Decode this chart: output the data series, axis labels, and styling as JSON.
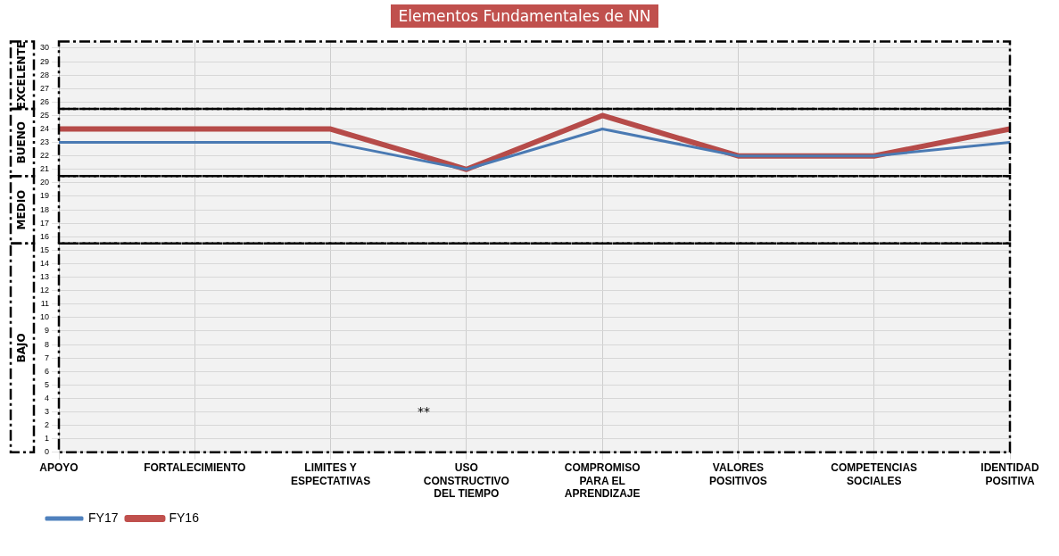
{
  "chart_data": {
    "type": "line",
    "title": "Elementos Fundamentales de NN",
    "categories": [
      "APOYO",
      "FORTALECIMIENTO",
      "LIMITES Y ESPECTATIVAS",
      "USO CONSTRUCTIVO DEL TIEMPO",
      "COMPROMISO PARA EL APRENDIZAJE",
      "VALORES POSITIVOS",
      "COMPETENCIAS SOCIALES",
      "IDENTIDAD POSITIVA"
    ],
    "series": [
      {
        "name": "FY16",
        "color": "#c0504d",
        "values": [
          24,
          24,
          24,
          21,
          25,
          22,
          22,
          24
        ]
      },
      {
        "name": "FY17",
        "color": "#4f81bd",
        "values": [
          23,
          23,
          23,
          21,
          24,
          22,
          22,
          23
        ]
      }
    ],
    "ylim": [
      0,
      30.5
    ],
    "yticks": [
      0,
      1,
      2,
      3,
      4,
      5,
      6,
      7,
      8,
      9,
      10,
      11,
      12,
      13,
      14,
      15,
      16,
      17,
      18,
      19,
      20,
      21,
      22,
      23,
      24,
      25,
      26,
      27,
      28,
      29,
      30
    ],
    "bands": [
      {
        "axis": "y",
        "from": 25.5,
        "to": 30.5,
        "label": "EXCELENTE",
        "color": "#000000"
      },
      {
        "axis": "y",
        "from": 20.5,
        "to": 25.5,
        "label": "BUENO",
        "color": "#000000"
      },
      {
        "axis": "y",
        "from": 15.5,
        "to": 20.5,
        "label": "MEDIO",
        "color": "#000000"
      },
      {
        "axis": "y",
        "from": 0,
        "to": 15.5,
        "label": "BAJO",
        "color": "#000000"
      }
    ],
    "annotations": [
      "**"
    ],
    "grid": true,
    "legend": "bottom left",
    "marker": "none",
    "line_style": "solid"
  }
}
